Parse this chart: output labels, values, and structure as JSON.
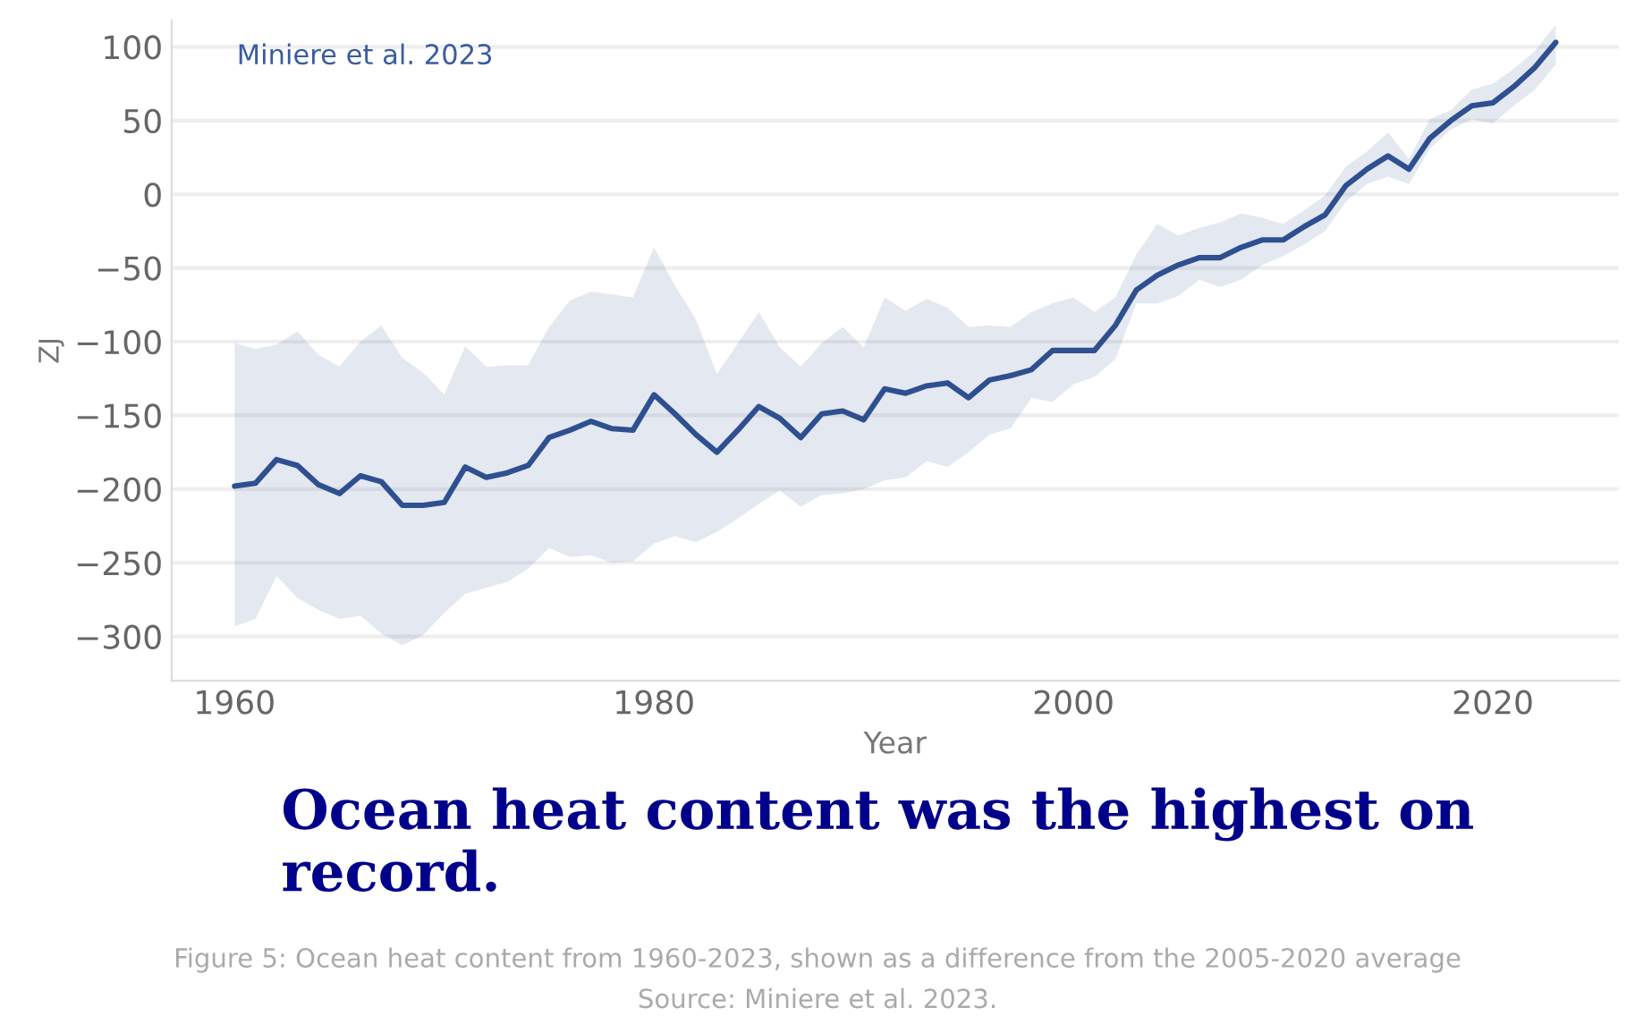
{
  "chart_data": {
    "type": "line",
    "xlabel": "Year",
    "ylabel": "ZJ",
    "annotations": [
      "Miniere et al. 2023",
      "Ocean heat content was the highest on record.",
      "Figure 5: Ocean heat content from 1960-2023, shown as a difference from the 2005-2020 average",
      "Source: Miniere et al. 2023."
    ],
    "x": [
      1960,
      1961,
      1962,
      1963,
      1964,
      1965,
      1966,
      1967,
      1968,
      1969,
      1970,
      1971,
      1972,
      1973,
      1974,
      1975,
      1976,
      1977,
      1978,
      1979,
      1980,
      1981,
      1982,
      1983,
      1984,
      1985,
      1986,
      1987,
      1988,
      1989,
      1990,
      1991,
      1992,
      1993,
      1994,
      1995,
      1996,
      1997,
      1998,
      1999,
      2000,
      2001,
      2002,
      2003,
      2004,
      2005,
      2006,
      2007,
      2008,
      2009,
      2010,
      2011,
      2012,
      2013,
      2014,
      2015,
      2016,
      2017,
      2018,
      2019,
      2020,
      2021,
      2022,
      2023
    ],
    "series": [
      {
        "color": "#2e5090",
        "values": [
          -198,
          -196,
          -180,
          -184,
          -197,
          -203,
          -191,
          -195,
          -211,
          -211,
          -209,
          -185,
          -192,
          -189,
          -184,
          -165,
          -160,
          -154,
          -159,
          -160,
          -136,
          -149,
          -163,
          -175,
          -160,
          -144,
          -152,
          -165,
          -149,
          -147,
          -153,
          -132,
          -135,
          -130,
          -128,
          -138,
          -126,
          -123,
          -119,
          -106,
          -106,
          -106,
          -89,
          -65,
          -55,
          -48,
          -43,
          -43,
          -36,
          -31,
          -31,
          -22,
          -14,
          6,
          17,
          26,
          17,
          38,
          50,
          60,
          62,
          73,
          86,
          103
        ],
        "upper": [
          -101,
          -105,
          -102,
          -93,
          -109,
          -117,
          -100,
          -89,
          -111,
          -121,
          -136,
          -103,
          -117,
          -116,
          -116,
          -90,
          -72,
          -66,
          -68,
          -70,
          -36,
          -62,
          -85,
          -122,
          -101,
          -80,
          -104,
          -117,
          -101,
          -90,
          -104,
          -70,
          -79,
          -71,
          -77,
          -90,
          -89,
          -90,
          -80,
          -74,
          -70,
          -80,
          -70,
          -41,
          -20,
          -28,
          -23,
          -19,
          -13,
          -16,
          -20,
          -11,
          -1,
          19,
          29,
          42,
          24,
          51,
          57,
          71,
          75,
          85,
          97,
          115
        ],
        "lower": [
          -293,
          -288,
          -259,
          -274,
          -282,
          -288,
          -286,
          -298,
          -306,
          -299,
          -284,
          -271,
          -267,
          -263,
          -254,
          -240,
          -246,
          -245,
          -250,
          -249,
          -237,
          -232,
          -236,
          -229,
          -220,
          -210,
          -201,
          -212,
          -204,
          -203,
          -200,
          -194,
          -192,
          -181,
          -185,
          -175,
          -163,
          -159,
          -138,
          -141,
          -129,
          -124,
          -112,
          -74,
          -74,
          -69,
          -58,
          -63,
          -58,
          -48,
          -42,
          -34,
          -25,
          -5,
          7,
          12,
          7,
          31,
          44,
          51,
          48,
          60,
          71,
          88
        ]
      }
    ],
    "xlim": [
      1957,
      2026
    ],
    "xticks": [
      1960,
      1980,
      2000,
      2020
    ],
    "ylim": [
      -330,
      118
    ],
    "yticks": [
      -300,
      -250,
      -200,
      -150,
      -100,
      -50,
      0,
      50,
      100
    ],
    "grid": "y",
    "legend": false
  }
}
